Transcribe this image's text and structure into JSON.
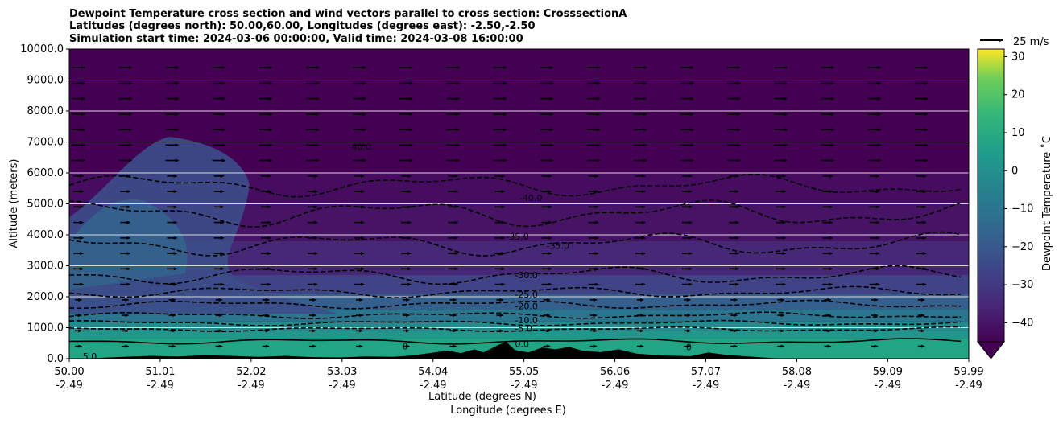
{
  "figure": {
    "title_lines": [
      "Dewpoint Temperature cross section and wind vectors parallel to cross section: CrosssectionA",
      "Latitudes (degrees north): 50.00,60.00, Longitudes (degrees east): -2.50,-2.50",
      "Simulation start time: 2024-03-06 00:00:00, Valid time: 2024-03-08 16:00:00"
    ]
  },
  "chart_data": {
    "type": "heatmap",
    "subtype": "filled-contour cross section with contour lines and wind vectors",
    "title": "Dewpoint Temperature cross section and wind vectors parallel to cross section: CrosssectionA",
    "ylabel": "Altitude (meters)",
    "xlabel": "Latitude (degrees N)",
    "xlabel2": "Longitude (degrees E)",
    "ylim": [
      0,
      10000
    ],
    "xlim": [
      50.0,
      59.99
    ],
    "yticks": [
      "0.0",
      "1000.0",
      "2000.0",
      "3000.0",
      "4000.0",
      "5000.0",
      "6000.0",
      "7000.0",
      "8000.0",
      "9000.0",
      "10000.0"
    ],
    "xticks": [
      {
        "lat": "50.00",
        "lon": "-2.49"
      },
      {
        "lat": "51.01",
        "lon": "-2.49"
      },
      {
        "lat": "52.02",
        "lon": "-2.49"
      },
      {
        "lat": "53.03",
        "lon": "-2.49"
      },
      {
        "lat": "54.04",
        "lon": "-2.49"
      },
      {
        "lat": "55.05",
        "lon": "-2.49"
      },
      {
        "lat": "56.06",
        "lon": "-2.49"
      },
      {
        "lat": "57.07",
        "lon": "-2.49"
      },
      {
        "lat": "58.08",
        "lon": "-2.49"
      },
      {
        "lat": "59.09",
        "lon": "-2.49"
      },
      {
        "lat": "59.99",
        "lon": "-2.49"
      }
    ],
    "grid": "horizontal lines at y ticks",
    "colormap": "viridis",
    "colorbar": {
      "label": "Dewpoint Temperature ˚C",
      "range": [
        -45,
        32
      ],
      "ticks": [
        "−40",
        "−30",
        "−20",
        "−10",
        "0",
        "10",
        "20",
        "30"
      ],
      "extend": "min"
    },
    "quiver_key": {
      "label": "25 m/s",
      "speed": 25
    },
    "contour_labels": [
      {
        "text": "-40.0",
        "lat": 53.1,
        "alt": 6850
      },
      {
        "text": "-40.0",
        "lat": 55.0,
        "alt": 5200
      },
      {
        "text": "-35.0",
        "lat": 54.85,
        "alt": 3950
      },
      {
        "text": "-35.0",
        "lat": 55.3,
        "alt": 3650
      },
      {
        "text": "-30.0",
        "lat": 54.95,
        "alt": 2700
      },
      {
        "text": "-25.0",
        "lat": 54.95,
        "alt": 2080
      },
      {
        "text": "-20.0",
        "lat": 54.95,
        "alt": 1700
      },
      {
        "text": "-10.0",
        "lat": 54.95,
        "alt": 1250
      },
      {
        "text": "-5.0",
        "lat": 54.95,
        "alt": 980
      },
      {
        "text": "0.0",
        "lat": 54.95,
        "alt": 480
      },
      {
        "text": "0",
        "lat": 53.7,
        "alt": 400
      },
      {
        "text": "0",
        "lat": 56.85,
        "alt": 380
      },
      {
        "text": "5.0",
        "lat": 50.15,
        "alt": 80
      }
    ],
    "terrain": [
      [
        50.0,
        0
      ],
      [
        50.3,
        20
      ],
      [
        50.6,
        60
      ],
      [
        50.9,
        90
      ],
      [
        51.2,
        70
      ],
      [
        51.5,
        110
      ],
      [
        51.8,
        90
      ],
      [
        52.1,
        60
      ],
      [
        52.4,
        90
      ],
      [
        52.7,
        50
      ],
      [
        53.0,
        40
      ],
      [
        53.3,
        70
      ],
      [
        53.6,
        60
      ],
      [
        53.8,
        100
      ],
      [
        54.0,
        180
      ],
      [
        54.2,
        260
      ],
      [
        54.35,
        180
      ],
      [
        54.5,
        300
      ],
      [
        54.6,
        200
      ],
      [
        54.75,
        420
      ],
      [
        54.85,
        550
      ],
      [
        54.95,
        280
      ],
      [
        55.1,
        200
      ],
      [
        55.25,
        360
      ],
      [
        55.4,
        300
      ],
      [
        55.55,
        380
      ],
      [
        55.7,
        260
      ],
      [
        55.9,
        210
      ],
      [
        56.1,
        300
      ],
      [
        56.3,
        160
      ],
      [
        56.6,
        100
      ],
      [
        56.9,
        80
      ],
      [
        57.1,
        200
      ],
      [
        57.3,
        120
      ],
      [
        57.6,
        60
      ],
      [
        57.8,
        20
      ],
      [
        58.0,
        0
      ],
      [
        59.99,
        0
      ]
    ]
  }
}
